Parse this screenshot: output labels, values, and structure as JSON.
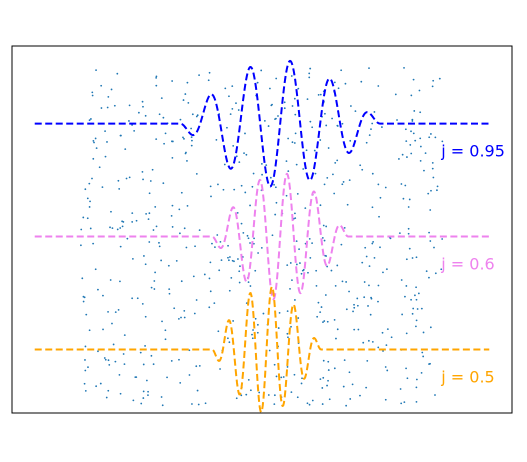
{
  "chart_data": {
    "type": "line",
    "title": "",
    "xlabel": "",
    "ylabel": "",
    "axes_visible": false,
    "ticks_visible": false,
    "grid": false,
    "legend": "inline labels at right end of each curve",
    "xlim": [
      -1.1,
      1.1
    ],
    "ylim": [
      -1.25,
      1.35
    ],
    "background_scatter": {
      "type": "scatter",
      "color": "#1f77b4",
      "marker": "small dot",
      "count": 640,
      "x_range": [
        -0.8,
        0.8
      ],
      "y_range": [
        -1.2,
        1.2
      ],
      "distribution": "uniform"
    },
    "series": [
      {
        "name": "j = 0.95",
        "label": "j = 0.95",
        "j": 0.95,
        "color": "#0000ff",
        "style": "dashed",
        "baseline": 0.8,
        "x_range": [
          -1.0,
          1.0
        ],
        "n_oscillations": 5,
        "envelope_center": 0.08,
        "envelope_width": 0.44,
        "amplitude": 0.45
      },
      {
        "name": "j = 0.6",
        "label": "j = 0.6",
        "j": 0.6,
        "color": "#ee82ee",
        "style": "dashed",
        "baseline": 0.0,
        "x_range": [
          -1.0,
          1.0
        ],
        "n_oscillations": 5,
        "envelope_center": 0.08,
        "envelope_width": 0.3,
        "amplitude": 0.45
      },
      {
        "name": "j = 0.5",
        "label": "j = 0.5",
        "j": 0.5,
        "color": "#ffa500",
        "style": "dashed",
        "baseline": -0.8,
        "x_range": [
          -1.0,
          1.0
        ],
        "n_oscillations": 5,
        "envelope_center": 0.02,
        "envelope_width": 0.24,
        "amplitude": 0.45
      }
    ]
  }
}
